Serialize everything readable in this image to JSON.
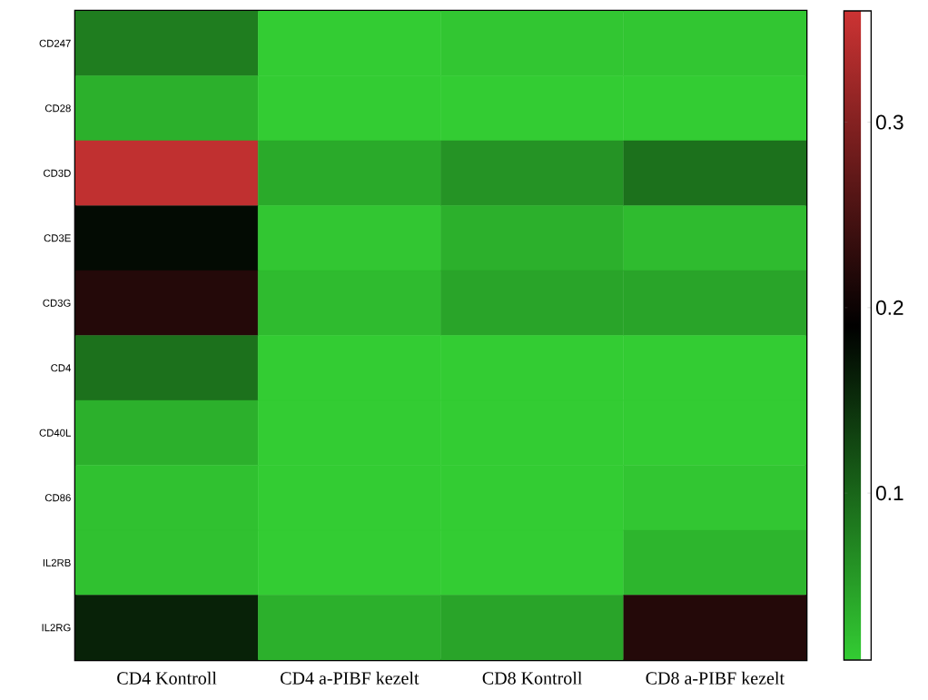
{
  "chart_data": {
    "type": "heatmap",
    "categories": [
      "CD4 Kontroll",
      "CD4 a-PIBF kezelt",
      "CD8 Kontroll",
      "CD8 a-PIBF kezelt"
    ],
    "y_categories": [
      "CD247",
      "CD28",
      "CD3D",
      "CD3E",
      "CD3G",
      "CD4",
      "CD40L",
      "CD86",
      "IL2RB",
      "IL2RG"
    ],
    "cells": [
      [
        0.08,
        0.01,
        0.015,
        0.015
      ],
      [
        0.035,
        0.01,
        0.01,
        0.01
      ],
      [
        0.35,
        0.04,
        0.06,
        0.09
      ],
      [
        0.18,
        0.015,
        0.035,
        0.025
      ],
      [
        0.22,
        0.025,
        0.045,
        0.045
      ],
      [
        0.09,
        0.01,
        0.01,
        0.01
      ],
      [
        0.035,
        0.01,
        0.01,
        0.01
      ],
      [
        0.02,
        0.01,
        0.01,
        0.015
      ],
      [
        0.02,
        0.01,
        0.01,
        0.03
      ],
      [
        0.16,
        0.035,
        0.045,
        0.22
      ]
    ],
    "clim": [
      0.01,
      0.36
    ],
    "cticks": [
      0.1,
      0.2,
      0.3
    ]
  }
}
